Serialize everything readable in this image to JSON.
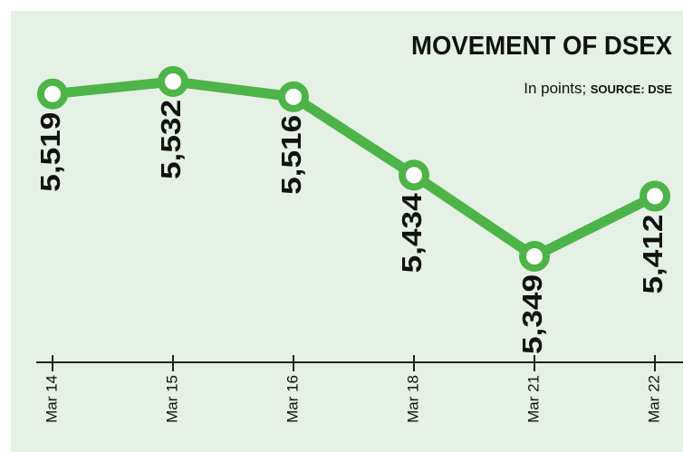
{
  "chart_data": {
    "type": "line",
    "title": "MOVEMENT OF DSEX",
    "subtitle": "In points;",
    "source": "SOURCE: DSE",
    "categories": [
      "Mar 14",
      "Mar 15",
      "Mar 16",
      "Mar 18",
      "Mar 21",
      "Mar 22"
    ],
    "series": [
      {
        "name": "DSEX",
        "color": "#4db447",
        "values": [
          5519,
          5532,
          5516,
          5434,
          5349,
          5412
        ],
        "value_labels": [
          "5,519",
          "5,532",
          "5,516",
          "5,434",
          "5,349",
          "5,412"
        ]
      }
    ]
  }
}
